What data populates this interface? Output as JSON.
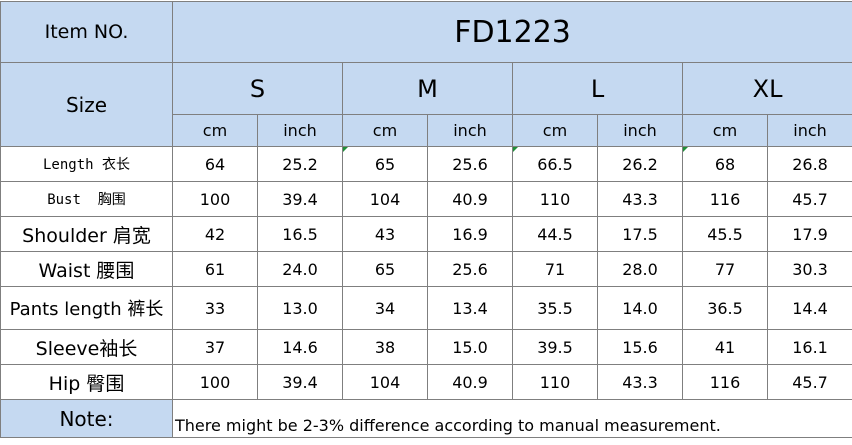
{
  "header": {
    "item_label": "Item NO.",
    "item_number": "FD1223",
    "size_label": "Size",
    "sizes": [
      "S",
      "M",
      "L",
      "XL"
    ],
    "units": [
      "cm",
      "inch",
      "cm",
      "inch",
      "cm",
      "inch",
      "cm",
      "inch"
    ]
  },
  "rows": [
    {
      "label": "Length 衣长",
      "values": [
        "64",
        "25.2",
        "65",
        "25.6",
        "66.5",
        "26.2",
        "68",
        "26.8"
      ]
    },
    {
      "label": "Bust  胸围",
      "values": [
        "100",
        "39.4",
        "104",
        "40.9",
        "110",
        "43.3",
        "116",
        "45.7"
      ]
    },
    {
      "label": "Shoulder 肩宽",
      "values": [
        "42",
        "16.5",
        "43",
        "16.9",
        "44.5",
        "17.5",
        "45.5",
        "17.9"
      ]
    },
    {
      "label": "Waist 腰围",
      "values": [
        "61",
        "24.0",
        "65",
        "25.6",
        "71",
        "28.0",
        "77",
        "30.3"
      ]
    },
    {
      "label": "Pants length 裤长",
      "values": [
        "33",
        "13.0",
        "34",
        "13.4",
        "35.5",
        "14.0",
        "36.5",
        "14.4"
      ]
    },
    {
      "label": "Sleeve袖长",
      "values": [
        "37",
        "14.6",
        "38",
        "15.0",
        "39.5",
        "15.6",
        "41",
        "16.1"
      ]
    },
    {
      "label": "Hip 臀围",
      "values": [
        "100",
        "39.4",
        "104",
        "40.9",
        "110",
        "43.3",
        "116",
        "45.7"
      ]
    }
  ],
  "note": {
    "label": "Note:",
    "text": "There might be 2-3% difference according to manual measurement."
  },
  "colors": {
    "header_fill": "#c5d9f1",
    "border": "#7f7f7f",
    "marker": "#1f8f3a"
  }
}
